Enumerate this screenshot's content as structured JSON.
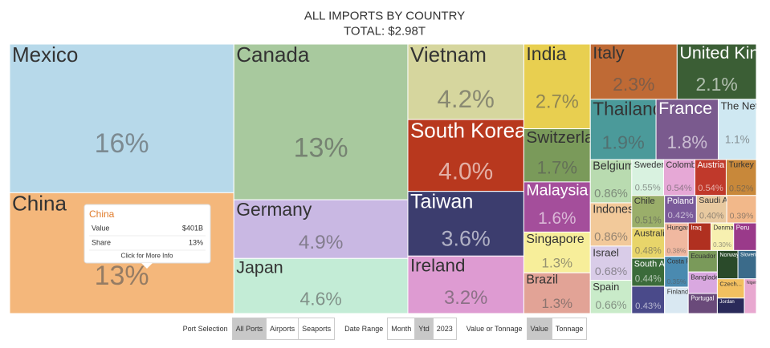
{
  "chart_data": {
    "type": "treemap",
    "title": "ALL IMPORTS BY COUNTRY",
    "subtitle": "TOTAL: $2.98T",
    "categories": [
      "Mexico",
      "China",
      "Canada",
      "Germany",
      "Japan",
      "Vietnam",
      "South Korea",
      "Taiwan",
      "Ireland",
      "India",
      "Switzerland",
      "Malaysia",
      "Singapore",
      "Brazil",
      "Italy",
      "United Kingdom",
      "Thailand",
      "France",
      "The Netherlands",
      "Belgium",
      "Indonesia",
      "Israel",
      "Spain",
      "Sweden",
      "Colombia",
      "Austria",
      "Turkey",
      "Chile",
      "Australia",
      "South Africa",
      null,
      "Poland",
      "Saudi Arabia",
      null,
      "Hungary",
      "Costa Rica",
      "Finland",
      "Iraq",
      "Denmark",
      "Peru",
      "Ecuador",
      "Bangladesh",
      "Portugal",
      "Norway",
      "Slovenia",
      "Czech...",
      "Jordan",
      "Nigeria"
    ],
    "values": [
      16,
      13,
      13,
      4.9,
      4.6,
      4.2,
      4.0,
      3.6,
      3.2,
      2.7,
      1.7,
      1.6,
      1.3,
      1.3,
      2.3,
      2.1,
      1.9,
      1.8,
      1.1,
      0.86,
      0.86,
      0.68,
      0.66,
      0.55,
      0.54,
      0.54,
      0.52,
      0.51,
      0.48,
      0.44,
      0.43,
      0.42,
      0.4,
      0.39,
      0.38,
      0.35,
      0.3,
      0.3,
      0.3,
      0.3,
      0.3,
      0.3,
      0.28,
      0.28,
      0.25,
      0.25,
      0.2,
      0.2
    ],
    "value_labels": [
      "16%",
      "13%",
      "13%",
      "4.9%",
      "4.6%",
      "4.2%",
      "4.0%",
      "3.6%",
      "3.2%",
      "2.7%",
      "1.7%",
      "1.6%",
      "1.3%",
      "1.3%",
      "2.3%",
      "2.1%",
      "1.9%",
      "1.8%",
      "1.1%",
      "0.86%",
      "0.86%",
      "0.68%",
      "0.66%",
      "0.55%",
      "0.54%",
      "0.54%",
      "0.52%",
      "0.51%",
      "0.48%",
      "0.44%",
      "0.43%",
      "0.42%",
      "0.40%",
      "0.39%",
      "0.38%",
      "0.35%",
      null,
      null,
      "0.30%",
      null,
      null,
      null,
      null,
      null,
      null,
      null,
      null,
      null
    ],
    "colors": [
      "#b7d9ea",
      "#f4b77b",
      "#a8c99e",
      "#c9b8e3",
      "#c3ecd6",
      "#d6d69e",
      "#b8381e",
      "#3c3d6e",
      "#de9bd2",
      "#e8cf50",
      "#7a9a5a",
      "#a44e9b",
      "#f7ee9a",
      "#e2a396",
      "#bf6a35",
      "#3b5e35",
      "#4b9a9a",
      "#7a5a8e",
      "#cfe8f2",
      "#b9dbb0",
      "#f2c99a",
      "#d9cce8",
      "#c9ebc9",
      "#d9f2e0",
      "#e6a8d6",
      "#c0392b",
      "#c8883a",
      "#9aae6a",
      "#e8d56a",
      "#3b6b3a",
      "#4a4a8a",
      "#7a5a9a",
      "#e8c9a0",
      "#f2b88a",
      "#f0b8a0",
      "#4a8ab0",
      "#d9e8f2",
      "#b03020",
      "#f7f0b0",
      "#9a3a8a",
      "#7a9a5a",
      "#d9a8e0",
      "#6a4a7a",
      "#2a4a2a",
      "#3b6b8a",
      "#f2c060",
      "#2a2a5a",
      "#e8a8d0"
    ]
  },
  "tooltip": {
    "title": "China",
    "rows": [
      [
        "Value",
        "$401B"
      ],
      [
        "Share",
        "13%"
      ]
    ],
    "footer": "Click for More Info"
  },
  "controls": [
    {
      "label": "Port Selection",
      "options": [
        "All Ports",
        "Airports",
        "Seaports"
      ],
      "selected": "All Ports"
    },
    {
      "label": "Date Range",
      "options": [
        "Month",
        "Ytd",
        "2023"
      ],
      "selected": "Ytd"
    },
    {
      "label": "Value or Tonnage",
      "options": [
        "Value",
        "Tonnage"
      ],
      "selected": "Value"
    }
  ]
}
